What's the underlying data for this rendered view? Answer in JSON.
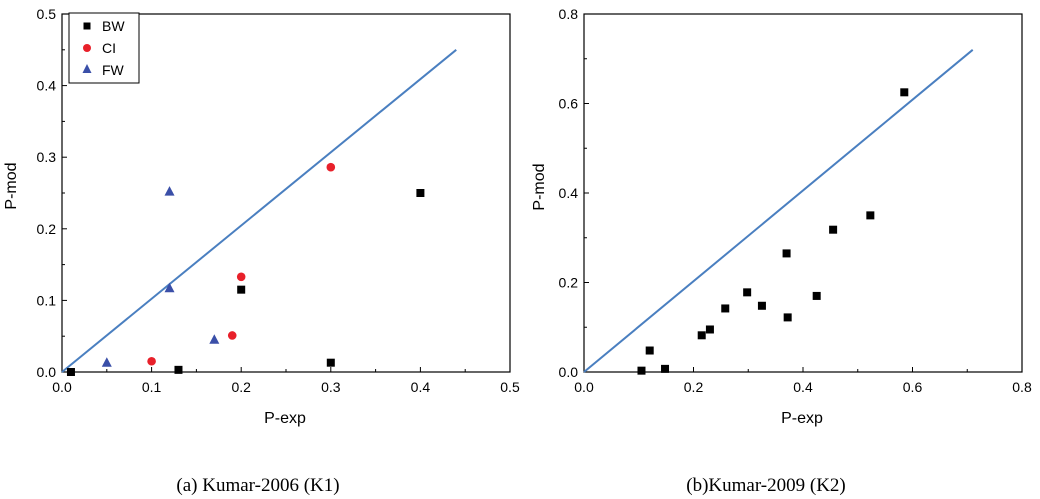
{
  "chart_data": [
    {
      "type": "scatter",
      "caption": "(a) Kumar-2006 (K1)",
      "xlabel": "P-exp",
      "ylabel": "P-mod",
      "xlim": [
        0,
        0.5
      ],
      "ylim": [
        0,
        0.5
      ],
      "xticks": [
        "0.0",
        "0.1",
        "0.2",
        "0.3",
        "0.4",
        "0.5"
      ],
      "yticks": [
        "0.0",
        "0.1",
        "0.2",
        "0.3",
        "0.4",
        "0.5"
      ],
      "legend_position": "top-left",
      "reference_line": {
        "x": [
          0,
          0.44
        ],
        "y": [
          0,
          0.45
        ],
        "color": "#4a7fc0"
      },
      "series": [
        {
          "name": "BW",
          "marker": "square",
          "color": "#000000",
          "x": [
            0.01,
            0.13,
            0.2,
            0.3,
            0.4
          ],
          "y": [
            0.0,
            0.003,
            0.115,
            0.013,
            0.25
          ]
        },
        {
          "name": "CI",
          "marker": "circle",
          "color": "#e8202a",
          "x": [
            0.1,
            0.19,
            0.2,
            0.3
          ],
          "y": [
            0.015,
            0.051,
            0.133,
            0.286
          ]
        },
        {
          "name": "FW",
          "marker": "triangle",
          "color": "#3a4fa8",
          "x": [
            0.05,
            0.12,
            0.12,
            0.17
          ],
          "y": [
            0.013,
            0.252,
            0.117,
            0.045
          ]
        }
      ]
    },
    {
      "type": "scatter",
      "caption": "(b)Kumar-2009 (K2)",
      "xlabel": "P-exp",
      "ylabel": "P-mod",
      "xlim": [
        0,
        0.8
      ],
      "ylim": [
        0,
        0.8
      ],
      "xticks": [
        "0.0",
        "0.2",
        "0.4",
        "0.6",
        "0.8"
      ],
      "yticks": [
        "0.0",
        "0.2",
        "0.4",
        "0.6",
        "0.8"
      ],
      "reference_line": {
        "x": [
          0,
          0.71
        ],
        "y": [
          0,
          0.72
        ],
        "color": "#4a7fc0"
      },
      "series": [
        {
          "marker": "square",
          "color": "#000000",
          "x": [
            0.105,
            0.12,
            0.148,
            0.215,
            0.23,
            0.258,
            0.298,
            0.325,
            0.37,
            0.372,
            0.425,
            0.455,
            0.523,
            0.585
          ],
          "y": [
            0.003,
            0.048,
            0.007,
            0.082,
            0.095,
            0.142,
            0.178,
            0.148,
            0.265,
            0.122,
            0.17,
            0.318,
            0.35,
            0.625
          ]
        }
      ]
    }
  ]
}
